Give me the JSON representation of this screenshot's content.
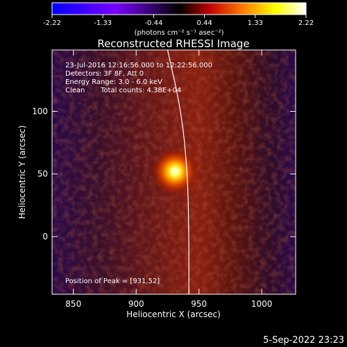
{
  "chart_data": {
    "type": "heatmap",
    "title": "Reconstructed RHESSI Image",
    "xlabel": "Heliocentric X (arcsec)",
    "ylabel": "Heliocentric Y (arcsec)",
    "xlim": [
      833,
      1027
    ],
    "ylim": [
      -46,
      149
    ],
    "x_ticks": [
      850,
      900,
      950,
      1000
    ],
    "y_ticks": [
      0,
      50,
      100
    ],
    "colorbar": {
      "ticks": [
        "-2.22",
        "-1.33",
        "-0.44",
        "0.44",
        "1.33",
        "2.22"
      ],
      "range": [
        -2.22,
        2.22
      ],
      "units": "(photons cm⁻² s⁻¹ asec⁻²)",
      "colormap": [
        "#0000ff",
        "#7a00ff",
        "#000000",
        "#c00000",
        "#ff7a00",
        "#ffff00",
        "#ffffff"
      ]
    },
    "annotations": {
      "time_range": "23-Jul-2016 12:16:56.000 to 12:22:56.000",
      "detectors": "Detectors: 3F 8F, Att 0",
      "energy_range": "Energy Range: 3.0 - 6.0 keV",
      "method": "Clean",
      "total_counts": "Total counts: 4.38E+04",
      "peak_position": "Position of Peak = [931,52]"
    },
    "peak": {
      "x": 931,
      "y": 52
    },
    "limb_curve": [
      [
        925,
        149
      ],
      [
        936,
        100
      ],
      [
        941,
        50
      ],
      [
        942,
        0
      ],
      [
        942,
        -46
      ]
    ]
  },
  "footer": {
    "date": "5-Sep-2022 23:23"
  }
}
